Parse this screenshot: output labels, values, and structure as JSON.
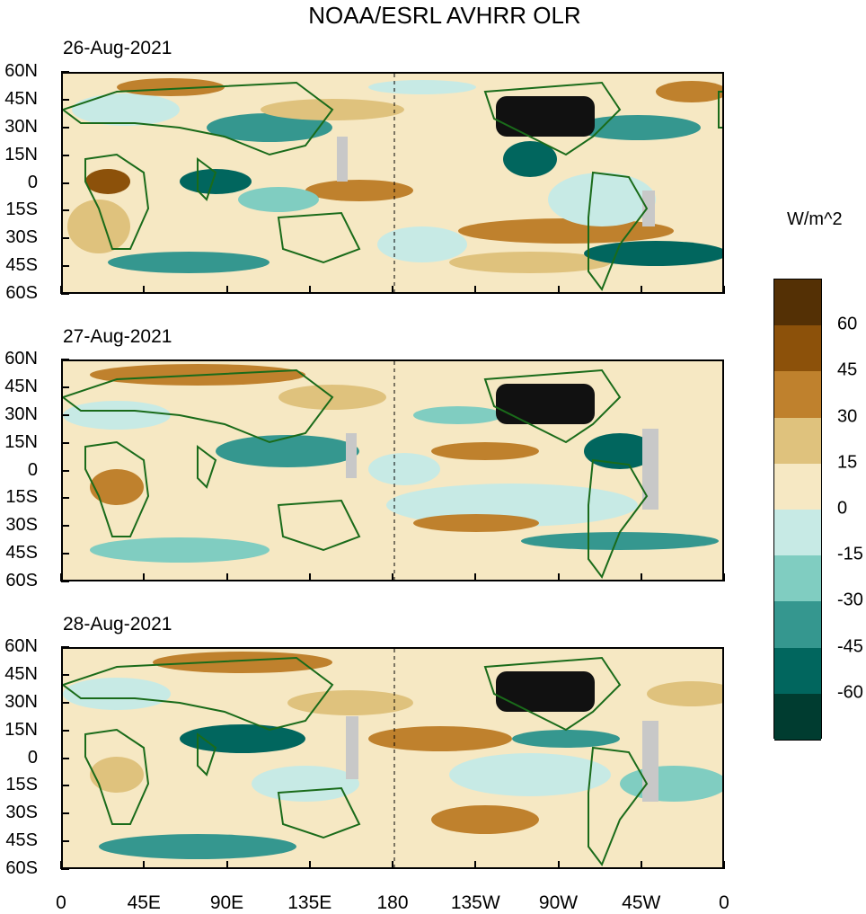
{
  "title": "NOAA/ESRL AVHRR OLR",
  "panels": [
    {
      "date": "26-Aug-2021"
    },
    {
      "date": "27-Aug-2021"
    },
    {
      "date": "28-Aug-2021"
    }
  ],
  "y_labels": [
    "60N",
    "45N",
    "30N",
    "15N",
    "0",
    "15S",
    "30S",
    "45S",
    "60S"
  ],
  "x_labels": [
    "0",
    "45E",
    "90E",
    "135E",
    "180",
    "135W",
    "90W",
    "45W",
    "0"
  ],
  "colorbar": {
    "unit": "W/m^2",
    "labels": [
      "60",
      "45",
      "30",
      "15",
      "0",
      "-15",
      "-30",
      "-45",
      "-60"
    ],
    "colors": [
      "#543005",
      "#8c510a",
      "#bf812d",
      "#dfc27d",
      "#f6e8c3",
      "#c7eae5",
      "#80cdc1",
      "#35978f",
      "#01665e",
      "#003c30"
    ]
  },
  "colors": {
    "land": "#1a6b1a",
    "missing": "#c8c8c8",
    "usa": "#111111"
  }
}
